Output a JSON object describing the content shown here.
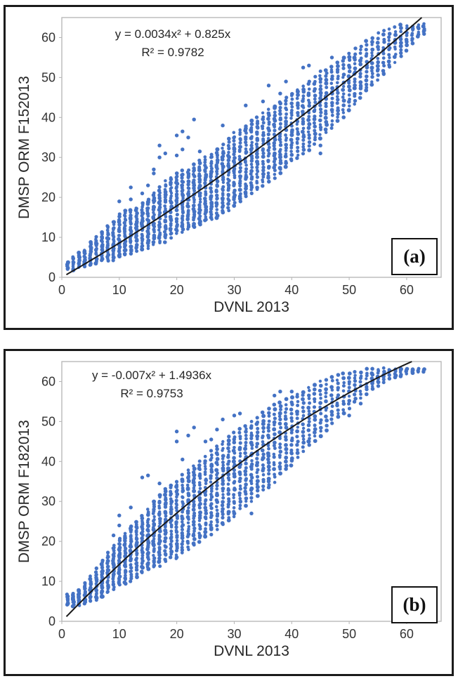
{
  "chart_data": [
    {
      "type": "scatter",
      "panel_label": "(a)",
      "xlabel": "DVNL 2013",
      "ylabel": "DMSP ORM F152013",
      "equation": "y = 0.0034x² + 0.825x",
      "r_squared": "R² = 0.9782",
      "trend": {
        "x2": 0.0034,
        "x1": 0.825,
        "x0": 0
      },
      "xlim": [
        0,
        66
      ],
      "ylim": [
        0,
        65
      ],
      "x_ticks": [
        0,
        10,
        20,
        30,
        40,
        50,
        60
      ],
      "y_ticks": [
        0,
        10,
        20,
        30,
        40,
        50,
        60
      ],
      "grid": false,
      "legend": "none",
      "point_color": "#4472C4",
      "line_color": "#1a1a1a",
      "columns_format": "x, y_min, y_max, n_points (vertical band of points at integer x)",
      "columns": [
        [
          1,
          2,
          4,
          8
        ],
        [
          2,
          2,
          5,
          10
        ],
        [
          3,
          2.5,
          6,
          12
        ],
        [
          4,
          3,
          7,
          14
        ],
        [
          5,
          3,
          8.5,
          16
        ],
        [
          6,
          3.5,
          10,
          18
        ],
        [
          7,
          4,
          11.5,
          20
        ],
        [
          8,
          4,
          13,
          22
        ],
        [
          9,
          4.5,
          14,
          22
        ],
        [
          10,
          5,
          16,
          24
        ],
        [
          11,
          5.5,
          16.5,
          24
        ],
        [
          12,
          6,
          17,
          24
        ],
        [
          13,
          6.5,
          17.5,
          24
        ],
        [
          14,
          7,
          18.5,
          24
        ],
        [
          15,
          7.5,
          19.5,
          26
        ],
        [
          16,
          8,
          21,
          26
        ],
        [
          17,
          8.5,
          22.5,
          26
        ],
        [
          18,
          9,
          24,
          26
        ],
        [
          19,
          10,
          25,
          26
        ],
        [
          20,
          11,
          26,
          28
        ],
        [
          21,
          11.5,
          26.5,
          28
        ],
        [
          22,
          12,
          27,
          28
        ],
        [
          23,
          12.5,
          28,
          28
        ],
        [
          24,
          13,
          29,
          28
        ],
        [
          25,
          14,
          30,
          28
        ],
        [
          26,
          14.5,
          31,
          28
        ],
        [
          27,
          15,
          32,
          28
        ],
        [
          28,
          16,
          33,
          28
        ],
        [
          29,
          17,
          34.5,
          28
        ],
        [
          30,
          18,
          36,
          28
        ],
        [
          31,
          19,
          37,
          26
        ],
        [
          32,
          20,
          38,
          26
        ],
        [
          33,
          21,
          39,
          26
        ],
        [
          34,
          22,
          40,
          26
        ],
        [
          35,
          23,
          41,
          24
        ],
        [
          36,
          24,
          42,
          24
        ],
        [
          37,
          25,
          43,
          24
        ],
        [
          38,
          26,
          44,
          24
        ],
        [
          39,
          27.5,
          45,
          22
        ],
        [
          40,
          29,
          46,
          22
        ],
        [
          41,
          30,
          47,
          22
        ],
        [
          42,
          31,
          48,
          22
        ],
        [
          43,
          32,
          49,
          20
        ],
        [
          44,
          33.5,
          50,
          20
        ],
        [
          45,
          35,
          51.5,
          20
        ],
        [
          46,
          36,
          52,
          18
        ],
        [
          47,
          37.5,
          53,
          18
        ],
        [
          48,
          39,
          54,
          18
        ],
        [
          49,
          40,
          55,
          16
        ],
        [
          50,
          42,
          56,
          16
        ],
        [
          51,
          43.5,
          57,
          16
        ],
        [
          52,
          45,
          58,
          14
        ],
        [
          53,
          46.5,
          59,
          14
        ],
        [
          54,
          48,
          60,
          14
        ],
        [
          55,
          49.5,
          61,
          12
        ],
        [
          56,
          51,
          61.5,
          12
        ],
        [
          57,
          52.5,
          62,
          12
        ],
        [
          58,
          54,
          62.5,
          10
        ],
        [
          59,
          55.5,
          63,
          10
        ],
        [
          60,
          57,
          63,
          8
        ],
        [
          61,
          58.5,
          63,
          8
        ],
        [
          62,
          60,
          63.2,
          7
        ],
        [
          63,
          61,
          63.2,
          6
        ]
      ],
      "outliers": [
        [
          10,
          19
        ],
        [
          12,
          19.5
        ],
        [
          12,
          22.5
        ],
        [
          14,
          21
        ],
        [
          15,
          23
        ],
        [
          16,
          26
        ],
        [
          16,
          27
        ],
        [
          17,
          30
        ],
        [
          17,
          33
        ],
        [
          18,
          31
        ],
        [
          20,
          30.5
        ],
        [
          20,
          35.5
        ],
        [
          21,
          32
        ],
        [
          21,
          36.5
        ],
        [
          22,
          35
        ],
        [
          23,
          39.5
        ],
        [
          24,
          31.5
        ],
        [
          28,
          38
        ],
        [
          32,
          43
        ],
        [
          35,
          44
        ],
        [
          36,
          48
        ],
        [
          38,
          46
        ],
        [
          39,
          49
        ],
        [
          42,
          52.5
        ],
        [
          43,
          53
        ],
        [
          45,
          31
        ],
        [
          45,
          33
        ],
        [
          47,
          55
        ],
        [
          52,
          48
        ],
        [
          55,
          52
        ],
        [
          56,
          51
        ]
      ]
    },
    {
      "type": "scatter",
      "panel_label": "(b)",
      "xlabel": "DVNL 2013",
      "ylabel": "DMSP ORM F182013",
      "equation": "y = -0.007x² + 1.4936x",
      "r_squared": "R² = 0.9753",
      "trend": {
        "x2": -0.007,
        "x1": 1.4936,
        "x0": 0
      },
      "xlim": [
        0,
        66
      ],
      "ylim": [
        0,
        65
      ],
      "x_ticks": [
        0,
        10,
        20,
        30,
        40,
        50,
        60
      ],
      "y_ticks": [
        0,
        10,
        20,
        30,
        40,
        50,
        60
      ],
      "grid": false,
      "legend": "none",
      "point_color": "#4472C4",
      "line_color": "#1a1a1a",
      "columns_format": "x, y_min, y_max, n_points (vertical band of points at integer x)",
      "columns": [
        [
          1,
          4,
          6.5,
          10
        ],
        [
          2,
          4,
          7,
          12
        ],
        [
          3,
          4,
          8,
          14
        ],
        [
          4,
          4.5,
          9.5,
          16
        ],
        [
          5,
          5,
          11,
          18
        ],
        [
          6,
          5.5,
          13,
          20
        ],
        [
          7,
          6,
          15,
          22
        ],
        [
          8,
          7,
          17,
          24
        ],
        [
          9,
          8,
          19,
          24
        ],
        [
          10,
          9,
          21,
          26
        ],
        [
          11,
          9.5,
          22,
          26
        ],
        [
          12,
          10,
          24,
          26
        ],
        [
          13,
          11,
          25,
          26
        ],
        [
          14,
          12,
          26.5,
          26
        ],
        [
          15,
          13,
          28,
          28
        ],
        [
          16,
          13.5,
          30,
          28
        ],
        [
          17,
          14,
          31.5,
          28
        ],
        [
          18,
          15,
          33,
          28
        ],
        [
          19,
          16,
          34,
          28
        ],
        [
          20,
          15.5,
          35,
          30
        ],
        [
          21,
          17,
          36.5,
          28
        ],
        [
          22,
          18,
          38,
          28
        ],
        [
          23,
          19,
          39,
          28
        ],
        [
          24,
          20,
          40,
          28
        ],
        [
          25,
          21,
          41,
          28
        ],
        [
          26,
          22,
          42.5,
          28
        ],
        [
          27,
          23,
          44,
          26
        ],
        [
          28,
          24,
          45,
          26
        ],
        [
          29,
          25,
          46,
          26
        ],
        [
          30,
          26,
          47,
          26
        ],
        [
          31,
          28,
          48,
          24
        ],
        [
          32,
          29,
          49,
          24
        ],
        [
          33,
          30,
          50,
          24
        ],
        [
          34,
          31.5,
          51,
          22
        ],
        [
          35,
          33,
          52,
          22
        ],
        [
          36,
          34,
          53,
          22
        ],
        [
          37,
          35,
          54,
          20
        ],
        [
          38,
          37,
          55,
          20
        ],
        [
          39,
          38,
          55.5,
          18
        ],
        [
          40,
          39,
          56,
          18
        ],
        [
          41,
          41,
          57,
          16
        ],
        [
          42,
          42.5,
          57.5,
          16
        ],
        [
          43,
          44,
          58.5,
          16
        ],
        [
          44,
          45,
          59,
          14
        ],
        [
          45,
          46.5,
          60,
          14
        ],
        [
          46,
          48,
          60.5,
          12
        ],
        [
          47,
          49.5,
          61,
          12
        ],
        [
          48,
          51,
          61.5,
          12
        ],
        [
          49,
          52,
          62,
          10
        ],
        [
          50,
          53.5,
          62,
          10
        ],
        [
          51,
          55,
          62.5,
          10
        ],
        [
          52,
          56,
          62.5,
          8
        ],
        [
          53,
          57,
          63,
          8
        ],
        [
          54,
          58,
          63,
          8
        ],
        [
          55,
          59,
          63,
          8
        ],
        [
          56,
          60,
          63.2,
          6
        ],
        [
          57,
          60.5,
          63.2,
          6
        ],
        [
          58,
          61,
          63.2,
          6
        ],
        [
          59,
          61.5,
          63.3,
          5
        ],
        [
          60,
          62,
          63.3,
          4
        ],
        [
          61,
          62.2,
          63.3,
          4
        ],
        [
          62,
          62.4,
          63.3,
          4
        ],
        [
          63,
          62.5,
          63.3,
          3
        ]
      ],
      "outliers": [
        [
          9,
          21.5
        ],
        [
          10,
          24
        ],
        [
          10,
          26.5
        ],
        [
          12,
          28.5
        ],
        [
          14,
          36
        ],
        [
          15,
          36.5
        ],
        [
          17,
          34.5
        ],
        [
          20,
          45
        ],
        [
          20,
          47.5
        ],
        [
          21,
          40.5
        ],
        [
          22,
          46.5
        ],
        [
          23,
          48.5
        ],
        [
          25,
          45
        ],
        [
          26,
          45.5
        ],
        [
          27,
          48
        ],
        [
          28,
          50.5
        ],
        [
          30,
          51.5
        ],
        [
          31,
          52
        ],
        [
          33,
          27
        ],
        [
          36,
          33.5
        ],
        [
          37,
          56.5
        ],
        [
          38,
          57.5
        ],
        [
          40,
          42
        ],
        [
          40,
          57.5
        ],
        [
          43,
          45
        ],
        [
          50,
          51.5
        ],
        [
          52,
          54.5
        ]
      ]
    }
  ]
}
